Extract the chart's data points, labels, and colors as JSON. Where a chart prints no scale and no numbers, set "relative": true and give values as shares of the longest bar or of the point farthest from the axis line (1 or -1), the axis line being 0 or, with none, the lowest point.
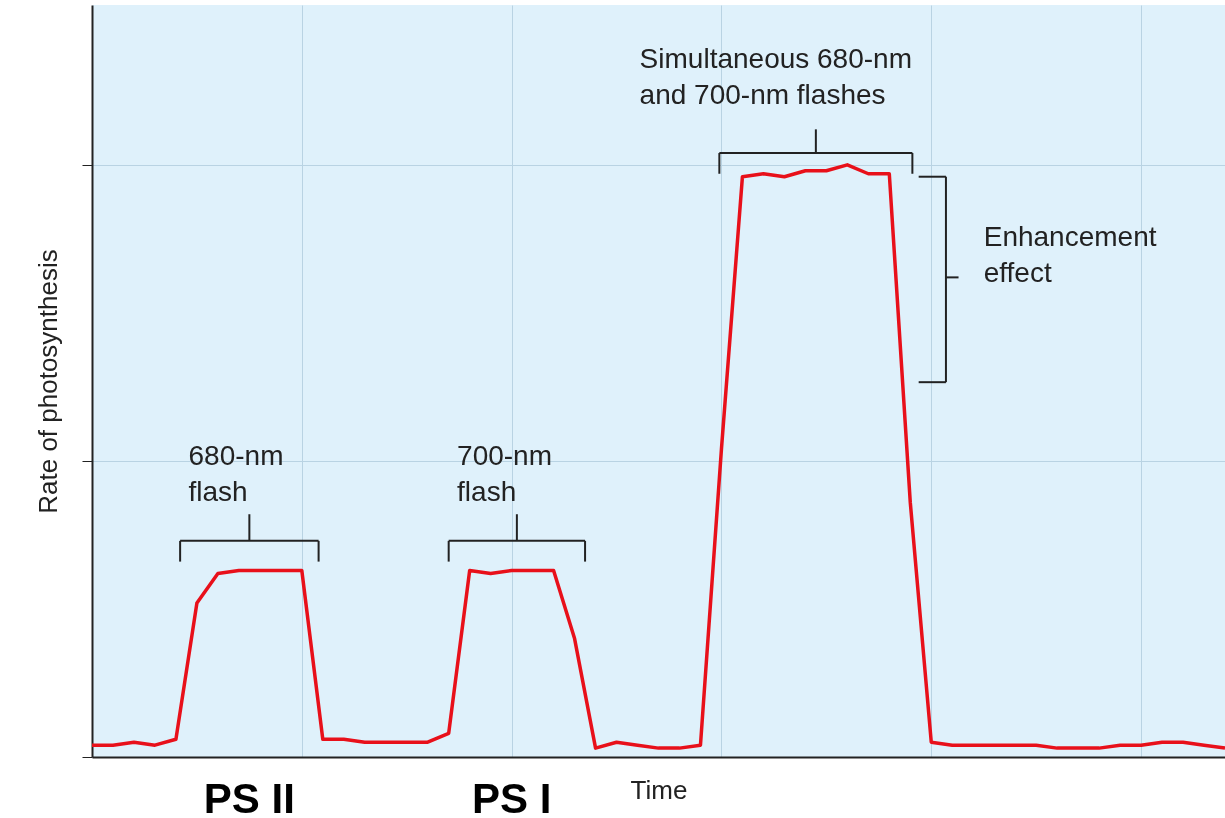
{
  "chart_data": {
    "type": "line",
    "relative": true,
    "xlabel": "Time",
    "ylabel": "Rate of photosynthesis",
    "categories": [
      null,
      null,
      null,
      null,
      null,
      null,
      null,
      null,
      null,
      null,
      null,
      null,
      null,
      null,
      null,
      null,
      null,
      null,
      null,
      null,
      null,
      null,
      null,
      null,
      null,
      null,
      null,
      null,
      null,
      null,
      null,
      null,
      null,
      null,
      null,
      null,
      null,
      null,
      null,
      null,
      null,
      null,
      null,
      null,
      null,
      null,
      null,
      null,
      null,
      null,
      null,
      null,
      null,
      null,
      null
    ],
    "series": [
      {
        "color": "#e8101a",
        "values": [
          0.02,
          0.02,
          0.025,
          0.02,
          0.03,
          0.26,
          0.31,
          0.315,
          0.315,
          0.315,
          0.315,
          0.03,
          0.03,
          0.025,
          0.025,
          0.025,
          0.025,
          0.04,
          0.315,
          0.31,
          0.315,
          0.315,
          0.315,
          0.2,
          0.015,
          0.025,
          0.02,
          0.015,
          0.015,
          0.02,
          0.52,
          0.98,
          0.985,
          0.98,
          0.99,
          0.99,
          1.0,
          0.985,
          0.985,
          0.43,
          0.025,
          0.02,
          0.02,
          0.02,
          0.02,
          0.02,
          0.015,
          0.015,
          0.015,
          0.02,
          0.02,
          0.025,
          0.025,
          0.02,
          0.015
        ]
      }
    ],
    "annotations": [
      "680-nm\nflash",
      "700-nm\nflash",
      "Simultaneous 680-nm\nand 700-nm flashes",
      "Enhancement\neffect",
      "PS II",
      "PS I"
    ],
    "grid": true
  }
}
